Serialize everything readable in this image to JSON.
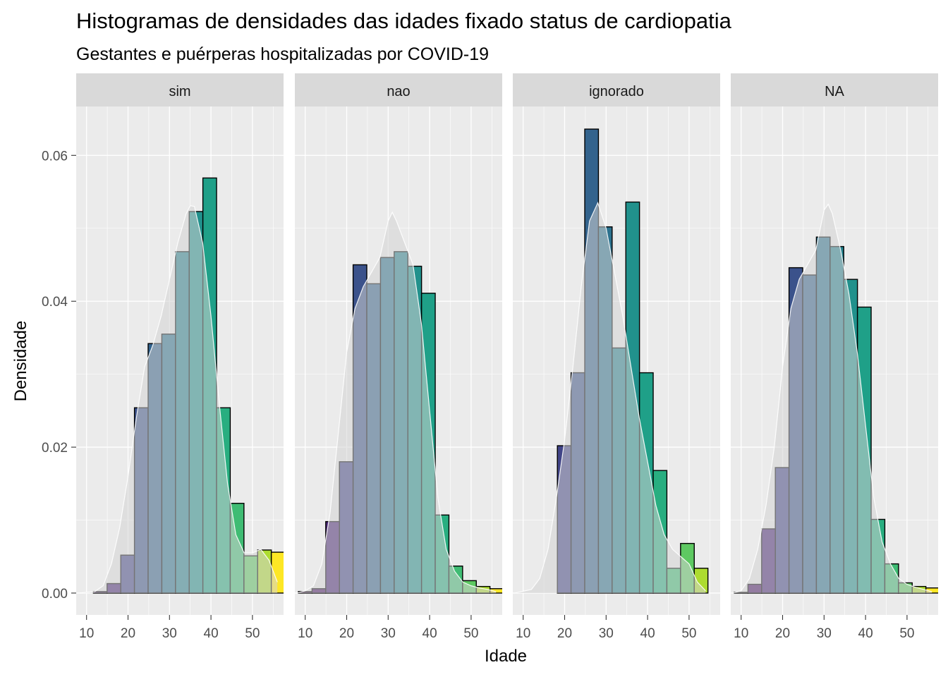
{
  "chart_data": {
    "type": "bar",
    "title": "Histogramas de densidades das idades fixado status de cardiopatia",
    "subtitle": "Gestantes e puérperas hospitalizadas por COVID-19",
    "xlabel": "Idade",
    "ylabel": "Densidade",
    "xlim": [
      7.5,
      57.5
    ],
    "ylim": [
      -0.003,
      0.0667
    ],
    "x_ticks": [
      10,
      20,
      30,
      40,
      50
    ],
    "x_tick_labels": [
      "10",
      "20",
      "30",
      "40",
      "50"
    ],
    "y_ticks": [
      0,
      0.02,
      0.04,
      0.06
    ],
    "y_tick_labels": [
      "0.00",
      "0.02",
      "0.04",
      "0.06"
    ],
    "grid": true,
    "legend": "none",
    "bin_width": 3.3,
    "bin_centers": [
      10,
      13.3,
      16.6,
      19.9,
      23.2,
      26.5,
      29.8,
      33.1,
      36.4,
      39.7,
      43.0,
      46.3,
      49.6,
      52.9,
      56.2
    ],
    "facets": [
      {
        "label": "sim",
        "values": [
          0.0,
          0.0002,
          0.0013,
          0.0052,
          0.0254,
          0.0342,
          0.0355,
          0.0468,
          0.0523,
          0.0569,
          0.0254,
          0.0123,
          0.0051,
          0.0059,
          0.0056
        ],
        "density_x": [
          8,
          12,
          14,
          16,
          18,
          20,
          22,
          24,
          26,
          28,
          30,
          32,
          34,
          35,
          36,
          38,
          40,
          42,
          44,
          46,
          48,
          50,
          52,
          54,
          56
        ],
        "density_y": [
          0,
          0.0002,
          0.001,
          0.004,
          0.009,
          0.016,
          0.024,
          0.031,
          0.034,
          0.038,
          0.043,
          0.048,
          0.052,
          0.0531,
          0.053,
          0.048,
          0.038,
          0.026,
          0.015,
          0.008,
          0.0055,
          0.0055,
          0.006,
          0.0045,
          0.0015
        ]
      },
      {
        "label": "nao",
        "values": [
          0.0002,
          0.0006,
          0.0098,
          0.018,
          0.045,
          0.0424,
          0.046,
          0.0468,
          0.0448,
          0.0411,
          0.0107,
          0.0037,
          0.0017,
          0.0009,
          0.0006
        ],
        "density_x": [
          8,
          10,
          12,
          14,
          16,
          18,
          20,
          22,
          24,
          26,
          28,
          30,
          31,
          32,
          34,
          36,
          38,
          40,
          42,
          44,
          46,
          48,
          50,
          52,
          54,
          56
        ],
        "density_y": [
          0,
          0.0003,
          0.001,
          0.004,
          0.011,
          0.022,
          0.033,
          0.039,
          0.042,
          0.044,
          0.046,
          0.051,
          0.0522,
          0.051,
          0.048,
          0.045,
          0.037,
          0.025,
          0.013,
          0.006,
          0.003,
          0.0015,
          0.001,
          0.0007,
          0.0005,
          0.0002
        ]
      },
      {
        "label": "ignorado",
        "values": [
          0.0,
          0.0,
          0.0,
          0.0202,
          0.0302,
          0.0636,
          0.0502,
          0.0336,
          0.0536,
          0.0302,
          0.0168,
          0.0034,
          0.0068,
          0.0034,
          0.0
        ],
        "density_x": [
          8,
          12,
          14,
          16,
          18,
          20,
          22,
          24,
          26,
          28,
          30,
          32,
          34,
          36,
          38,
          40,
          42,
          44,
          46,
          48,
          50,
          52,
          54
        ],
        "density_y": [
          0,
          0.0005,
          0.002,
          0.006,
          0.013,
          0.021,
          0.031,
          0.042,
          0.051,
          0.0535,
          0.05,
          0.044,
          0.038,
          0.031,
          0.024,
          0.018,
          0.012,
          0.008,
          0.006,
          0.005,
          0.004,
          0.0015,
          0.0003
        ]
      },
      {
        "label": "NA",
        "values": [
          0.0001,
          0.0012,
          0.0088,
          0.0172,
          0.0446,
          0.0436,
          0.0488,
          0.0475,
          0.043,
          0.0392,
          0.0101,
          0.004,
          0.0014,
          0.0009,
          0.0007
        ],
        "density_x": [
          8,
          10,
          12,
          14,
          16,
          18,
          20,
          22,
          24,
          26,
          28,
          30,
          31,
          32,
          34,
          36,
          38,
          40,
          42,
          44,
          46,
          48,
          50,
          52,
          54,
          56
        ],
        "density_y": [
          0,
          0.0003,
          0.002,
          0.006,
          0.012,
          0.02,
          0.031,
          0.039,
          0.043,
          0.045,
          0.047,
          0.0525,
          0.0533,
          0.052,
          0.047,
          0.041,
          0.033,
          0.023,
          0.013,
          0.007,
          0.004,
          0.002,
          0.0012,
          0.0008,
          0.0005,
          0.0002
        ]
      }
    ]
  },
  "colors": {
    "panel_bg": "#EBEBEB",
    "strip_bg": "#D9D9D9",
    "grid": "#ffffff",
    "bar_outline": "#000000",
    "density_fill": "#D3D3D3",
    "density_line": "#ffffff",
    "palette": [
      "#440154",
      "#471365",
      "#482475",
      "#414487",
      "#3b528b",
      "#33638d",
      "#2c728e",
      "#26828e",
      "#21918c",
      "#1fa088",
      "#28ae80",
      "#3fbc73",
      "#5ec962",
      "#addc30",
      "#fde725"
    ]
  }
}
